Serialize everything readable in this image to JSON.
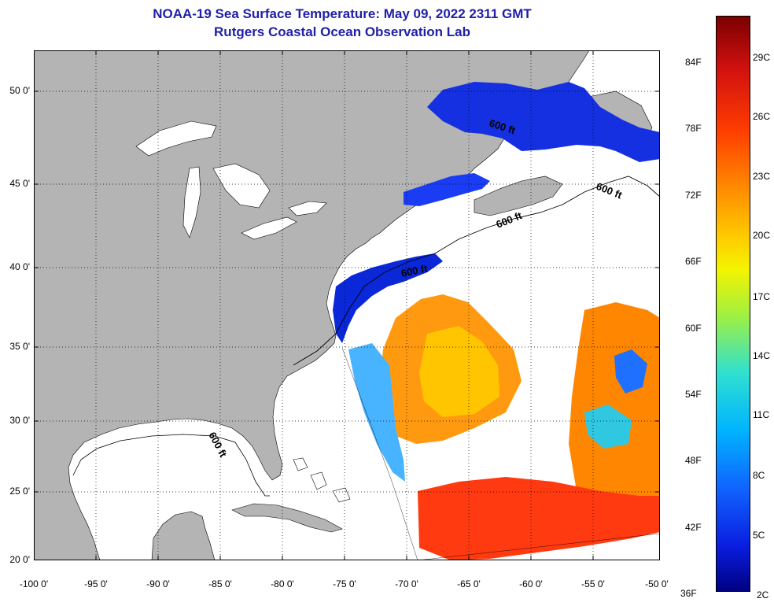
{
  "title": {
    "line1": "NOAA-19 Sea Surface Temperature:  May 09, 2022 2311 GMT",
    "line2": "Rutgers Coastal Ocean Observation Lab"
  },
  "map": {
    "lat_labels": [
      "50 0'",
      "45 0'",
      "40 0'",
      "35 0'",
      "30 0'",
      "25 0'",
      "20 0'"
    ],
    "lon_labels": [
      "-100 0'",
      "-95 0'",
      "-90 0'",
      "-85 0'",
      "-80 0'",
      "-75 0'",
      "-70 0'",
      "-65 0'",
      "-60 0'",
      "-55 0'",
      "-50 0'"
    ],
    "isobath_labels": [
      "600 ft",
      "600 ft",
      "600 ft",
      "600 ft",
      "600 ft"
    ],
    "land_color": "#b4b4b4",
    "no_data_color": "#ffffff"
  },
  "colorbar": {
    "f_labels": [
      "84F",
      "78F",
      "72F",
      "66F",
      "60F",
      "54F",
      "48F",
      "42F",
      "36F"
    ],
    "c_labels": [
      "29C",
      "26C",
      "23C",
      "20C",
      "17C",
      "14C",
      "11C",
      "8C",
      "5C",
      "2C"
    ],
    "colors": [
      "#7a0000",
      "#d01010",
      "#ff3d00",
      "#ff8c00",
      "#ffc800",
      "#f4f400",
      "#a0f040",
      "#30e0d0",
      "#00b4ff",
      "#1064ff",
      "#0a1ee0",
      "#000080"
    ]
  }
}
